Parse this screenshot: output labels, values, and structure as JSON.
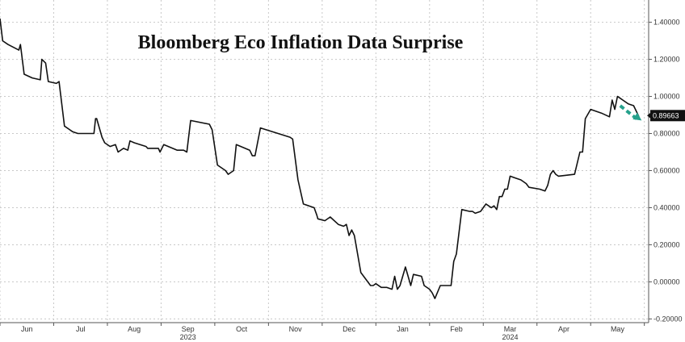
{
  "chart_data": {
    "type": "line",
    "title": "Bloomberg Eco Inflation Data Surprise",
    "xlabel": "",
    "ylabel": "",
    "ylim": [
      -0.22,
      1.52
    ],
    "yticks": [
      -0.2,
      0,
      0.2,
      0.4,
      0.6,
      0.8,
      1.0,
      1.2,
      1.4
    ],
    "ytick_labels": [
      "-0.20000",
      "0.00000",
      "0.20000",
      "0.40000",
      "0.60000",
      "0.80000",
      "1.00000",
      "1.20000",
      "1.40000"
    ],
    "xlim": [
      0,
      12.08
    ],
    "x_unit": "months from 1 Jun 2023",
    "month_ticks": [
      {
        "x": 0.5,
        "label": "Jun"
      },
      {
        "x": 1.5,
        "label": "Jul"
      },
      {
        "x": 2.5,
        "label": "Aug"
      },
      {
        "x": 3.5,
        "label": "Sep"
      },
      {
        "x": 4.5,
        "label": "Oct"
      },
      {
        "x": 5.5,
        "label": "Nov"
      },
      {
        "x": 6.5,
        "label": "Dec"
      },
      {
        "x": 7.5,
        "label": "Jan"
      },
      {
        "x": 8.5,
        "label": "Feb"
      },
      {
        "x": 9.5,
        "label": "Mar"
      },
      {
        "x": 10.5,
        "label": "Apr"
      },
      {
        "x": 11.5,
        "label": "May"
      }
    ],
    "year_labels": [
      {
        "x": 3.5,
        "label": "2023"
      },
      {
        "x": 9.5,
        "label": "2024"
      }
    ],
    "grid": true,
    "legend": "none",
    "series": [
      {
        "color": "#111111",
        "x": [
          0,
          0.05,
          0.15,
          0.35,
          0.38,
          0.45,
          0.6,
          0.75,
          0.78,
          0.85,
          0.9,
          1.05,
          1.1,
          1.2,
          1.3,
          1.35,
          1.45,
          1.75,
          1.78,
          1.8,
          1.9,
          1.95,
          2.05,
          2.15,
          2.2,
          2.3,
          2.38,
          2.42,
          2.5,
          2.72,
          2.75,
          2.95,
          2.98,
          3.05,
          3.3,
          3.35,
          3.42,
          3.48,
          3.55,
          3.9,
          3.95,
          4.05,
          4.2,
          4.25,
          4.35,
          4.4,
          4.65,
          4.7,
          4.75,
          4.85,
          5.4,
          5.45,
          5.55,
          5.65,
          5.85,
          5.9,
          5.92,
          6.05,
          6.15,
          6.3,
          6.4,
          6.45,
          6.5,
          6.55,
          6.6,
          6.72,
          6.9,
          6.95,
          7.0,
          7.1,
          7.2,
          7.3,
          7.35,
          7.4,
          7.45,
          7.55,
          7.65,
          7.7,
          7.85,
          7.9,
          8.0,
          8.05,
          8.1,
          8.2,
          8.4,
          8.45,
          8.5,
          8.6,
          8.75,
          8.8,
          8.85,
          8.95,
          9.05,
          9.1,
          9.15,
          9.2,
          9.25,
          9.3,
          9.35,
          9.4,
          9.45,
          9.5,
          9.6,
          9.7,
          9.8,
          9.85,
          10.05,
          10.15,
          10.2,
          10.25,
          10.3,
          10.35,
          10.4,
          10.7,
          10.8,
          10.85,
          10.9,
          11.0,
          11.2,
          11.35,
          11.4,
          11.45,
          11.5,
          11.55,
          11.6,
          11.7,
          11.8,
          11.85,
          11.9
        ],
        "y": [
          1.42,
          1.3,
          1.28,
          1.25,
          1.28,
          1.12,
          1.1,
          1.09,
          1.2,
          1.18,
          1.08,
          1.07,
          1.08,
          0.84,
          0.82,
          0.81,
          0.8,
          0.8,
          0.88,
          0.88,
          0.78,
          0.75,
          0.73,
          0.74,
          0.7,
          0.72,
          0.71,
          0.76,
          0.75,
          0.73,
          0.72,
          0.72,
          0.7,
          0.74,
          0.71,
          0.71,
          0.71,
          0.7,
          0.87,
          0.85,
          0.82,
          0.63,
          0.6,
          0.58,
          0.6,
          0.74,
          0.71,
          0.68,
          0.68,
          0.83,
          0.78,
          0.77,
          0.55,
          0.42,
          0.4,
          0.36,
          0.34,
          0.33,
          0.35,
          0.31,
          0.3,
          0.31,
          0.25,
          0.28,
          0.25,
          0.05,
          -0.02,
          -0.02,
          -0.01,
          -0.03,
          -0.03,
          -0.04,
          0.03,
          -0.04,
          -0.02,
          0.08,
          -0.02,
          0.04,
          0.03,
          -0.02,
          -0.04,
          -0.06,
          -0.09,
          -0.02,
          -0.02,
          0.11,
          0.15,
          0.39,
          0.38,
          0.38,
          0.37,
          0.38,
          0.42,
          0.41,
          0.4,
          0.41,
          0.39,
          0.46,
          0.46,
          0.5,
          0.5,
          0.57,
          0.56,
          0.55,
          0.53,
          0.51,
          0.5,
          0.49,
          0.52,
          0.58,
          0.6,
          0.58,
          0.57,
          0.58,
          0.7,
          0.7,
          0.88,
          0.93,
          0.91,
          0.89,
          0.98,
          0.93,
          1.0,
          0.99,
          0.98,
          0.96,
          0.95,
          0.92,
          0.89
        ]
      }
    ],
    "last_value": {
      "label": "0.89663",
      "value": 0.89663,
      "color": "#111111"
    },
    "annotation": {
      "type": "dashed-arrow",
      "color": "#26a18c",
      "x": [
        11.55,
        11.95
      ],
      "y": [
        0.95,
        0.87
      ]
    }
  }
}
